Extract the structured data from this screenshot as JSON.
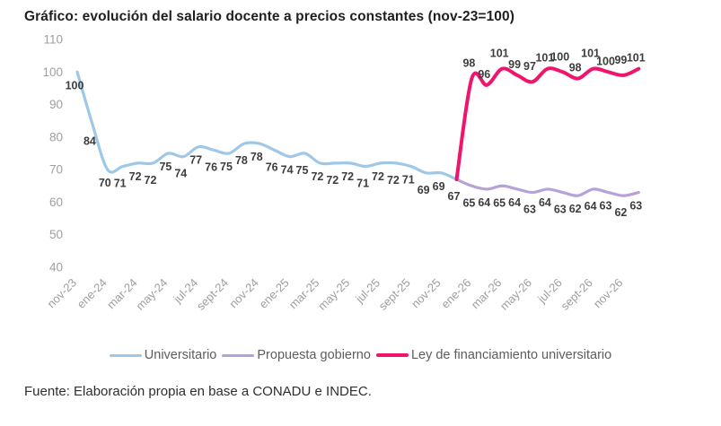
{
  "title": "Gráfico: evolución del salario docente a precios constantes (nov-23=100)",
  "source": "Fuente: Elaboración propia en base a CONADU e INDEC.",
  "colors": {
    "universitario": "#9fc8e8",
    "propuesta_gobierno": "#b6a1d9",
    "ley_financiamiento": "#f0146c",
    "data_label": "#3d3d3d",
    "axis_label": "#9e9e9e",
    "title_text": "#1f1f1f",
    "legend_text": "#5d5d5d"
  },
  "chart_data": {
    "type": "line",
    "title": "Gráfico: evolución del salario docente a precios constantes (nov-23=100)",
    "xlabel": "",
    "ylabel": "",
    "ylim": [
      40,
      110
    ],
    "y_ticks": [
      110,
      100,
      90,
      80,
      70,
      60,
      50,
      40
    ],
    "grid": false,
    "legend_position": "bottom",
    "x_tick_step": 2,
    "months": [
      "nov-23",
      "dic-23",
      "ene-24",
      "feb-24",
      "mar-24",
      "abr-24",
      "may-24",
      "jun-24",
      "jul-24",
      "ago-24",
      "sept-24",
      "oct-24",
      "nov-24",
      "dic-24",
      "ene-25",
      "feb-25",
      "mar-25",
      "abr-25",
      "may-25",
      "jun-25",
      "jul-25",
      "ago-25",
      "sept-25",
      "oct-25",
      "nov-25",
      "dic-25",
      "ene-26",
      "feb-26",
      "mar-26",
      "abr-26",
      "may-26",
      "jun-26",
      "jul-26",
      "ago-26",
      "sept-26",
      "oct-26",
      "nov-26",
      "dic-26"
    ],
    "x_tick_labels": [
      "nov-23",
      "ene-24",
      "mar-24",
      "may-24",
      "jul-24",
      "sept-24",
      "nov-24",
      "ene-25",
      "mar-25",
      "may-25",
      "jul-25",
      "sept-25",
      "nov-25",
      "ene-26",
      "mar-26",
      "may-26",
      "jul-26",
      "sept-26",
      "nov-26"
    ],
    "series": [
      {
        "name": "Universitario",
        "color": "#9fc8e8",
        "stroke_width": 3.2,
        "start_index": 0,
        "labels_position": "below",
        "skip_first_label": false,
        "values": [
          100,
          84,
          70,
          71,
          72,
          72,
          75,
          74,
          77,
          76,
          75,
          78,
          78,
          76,
          74,
          75,
          72,
          72,
          72,
          71,
          72,
          72,
          71,
          69,
          69,
          67
        ]
      },
      {
        "name": "Propuesta gobierno",
        "color": "#b6a1d9",
        "stroke_width": 3.2,
        "start_index": 25,
        "labels_position": "below",
        "skip_first_label": true,
        "values": [
          67,
          65,
          64,
          65,
          64,
          63,
          64,
          63,
          62,
          64,
          63,
          62,
          63
        ]
      },
      {
        "name": "Ley de financiamiento universitario",
        "color": "#f0146c",
        "stroke_width": 4,
        "start_index": 25,
        "labels_position": "above",
        "skip_first_label": true,
        "values": [
          67,
          98,
          96,
          101,
          99,
          97,
          101,
          100,
          98,
          101,
          100,
          99,
          101
        ]
      }
    ]
  }
}
